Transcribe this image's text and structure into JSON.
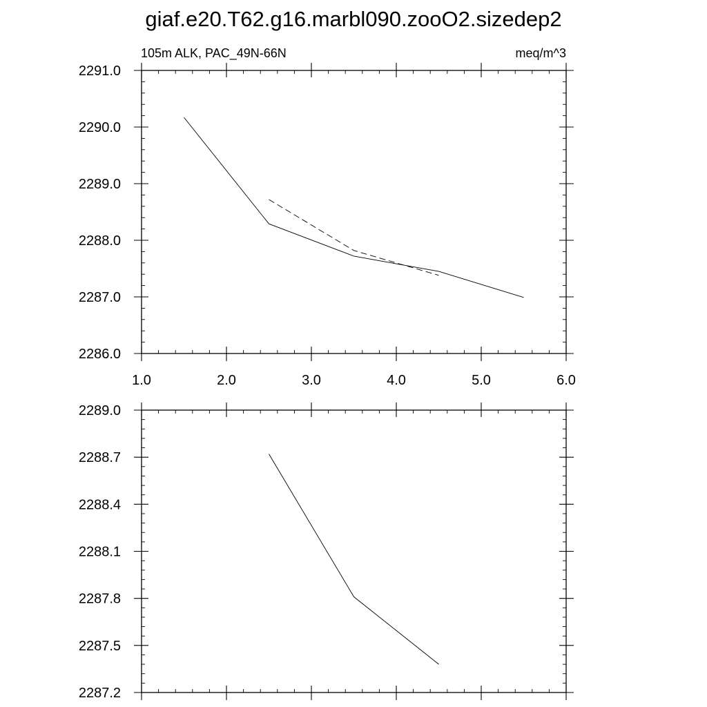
{
  "title": "giaf.e20.T62.g16.marbl090.zooO2.sizedep2",
  "chart_data": [
    {
      "type": "line",
      "left_label": "105m ALK, PAC_49N-66N",
      "right_label": "meq/m^3",
      "xlim": [
        1.0,
        6.0
      ],
      "ylim": [
        2286.0,
        2291.0
      ],
      "xticks": [
        1.0,
        2.0,
        3.0,
        4.0,
        5.0,
        6.0
      ],
      "xtick_labels": [
        "1.0",
        "2.0",
        "3.0",
        "4.0",
        "5.0",
        "6.0"
      ],
      "yticks": [
        2286.0,
        2287.0,
        2288.0,
        2289.0,
        2290.0,
        2291.0
      ],
      "ytick_labels": [
        "2286.0",
        "2287.0",
        "2288.0",
        "2289.0",
        "2290.0",
        "2291.0"
      ],
      "grid": false,
      "series": [
        {
          "style": "solid",
          "x": [
            1.5,
            2.5,
            3.5,
            4.5,
            5.5
          ],
          "y": [
            2290.17,
            2288.29,
            2287.72,
            2287.45,
            2286.99
          ]
        },
        {
          "style": "dashed",
          "x": [
            2.5,
            3.5,
            4.5
          ],
          "y": [
            2288.72,
            2287.82,
            2287.38
          ]
        }
      ]
    },
    {
      "type": "line",
      "xlim": [
        1.0,
        6.0
      ],
      "ylim": [
        2287.2,
        2289.0
      ],
      "xticks": [
        1.0,
        2.0,
        3.0,
        4.0,
        5.0,
        6.0
      ],
      "yticks": [
        2287.2,
        2287.5,
        2287.8,
        2288.1,
        2288.4,
        2288.7,
        2289.0
      ],
      "ytick_labels": [
        "2287.2",
        "2287.5",
        "2287.8",
        "2288.1",
        "2288.4",
        "2288.7",
        "2289.0"
      ],
      "grid": false,
      "series": [
        {
          "style": "solid",
          "x": [
            2.5,
            3.5,
            4.5
          ],
          "y": [
            2288.72,
            2287.81,
            2287.38
          ]
        }
      ]
    }
  ]
}
